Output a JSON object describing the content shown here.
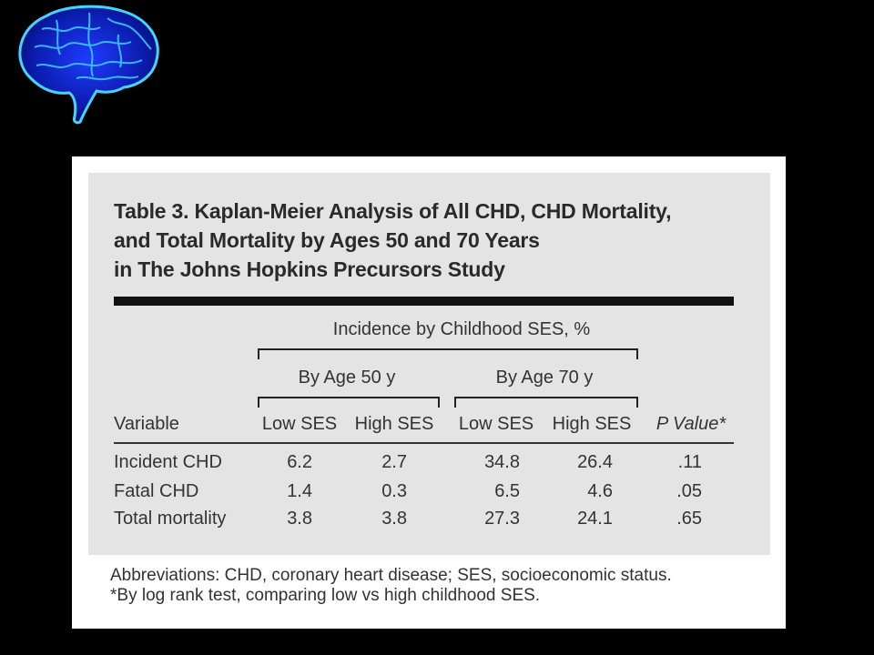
{
  "logo": {
    "icon": "brain-icon",
    "color": "#1a3fd9",
    "glow": "#3fd1ff"
  },
  "table": {
    "title_lines": [
      "Table 3. Kaplan-Meier Analysis of All CHD, CHD Mortality,",
      "and Total Mortality by Ages 50 and 70 Years",
      "in The Johns Hopkins Precursors Study"
    ],
    "spanner": "Incidence by Childhood SES, %",
    "group_50": "By Age 50 y",
    "group_70": "By Age 70 y",
    "columns": [
      "Variable",
      "Low SES",
      "High SES",
      "Low SES",
      "High SES",
      "P Value*"
    ],
    "rows": [
      [
        "Incident CHD",
        "6.2",
        "2.7",
        "34.8",
        "26.4",
        ".11"
      ],
      [
        "Fatal CHD",
        "1.4",
        "0.3",
        "6.5",
        "4.6",
        ".05"
      ],
      [
        "Total mortality",
        "3.8",
        "3.8",
        "27.3",
        "24.1",
        ".65"
      ]
    ],
    "footnotes": [
      "Abbreviations: CHD, coronary heart disease; SES, socioeconomic status.",
      "*By log rank test, comparing low vs high childhood SES."
    ]
  }
}
